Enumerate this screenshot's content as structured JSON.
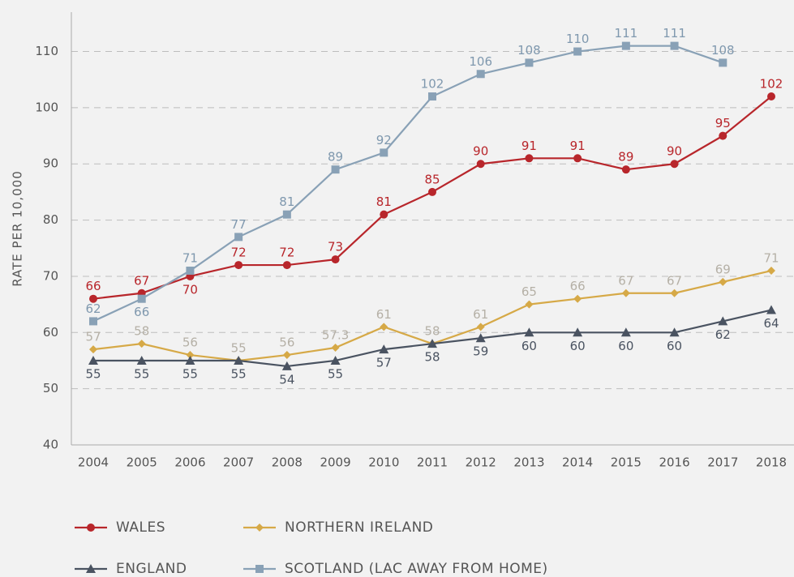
{
  "chart_data": {
    "type": "line",
    "y_label": "RATE PER 10,000",
    "categories": [
      "2004",
      "2005",
      "2006",
      "2007",
      "2008",
      "2009",
      "2010",
      "2011",
      "2012",
      "2013",
      "2014",
      "2015",
      "2016",
      "2017",
      "2018"
    ],
    "series": [
      {
        "name": "WALES",
        "color": "#b8262b",
        "label_color": "#b8262b",
        "marker": "circle",
        "values": [
          66,
          67,
          70,
          72,
          72,
          73,
          81,
          85,
          90,
          91,
          91,
          89,
          90,
          95,
          102
        ]
      },
      {
        "name": "NORTHERN IRELAND",
        "color": "#d6a947",
        "label_color": "#b5b0a6",
        "marker": "diamond",
        "values": [
          57,
          58,
          56,
          55,
          56,
          57.3,
          61,
          58,
          61,
          65,
          66,
          67,
          67,
          69,
          71
        ]
      },
      {
        "name": "ENGLAND",
        "color": "#4a5361",
        "label_color": "#4a5361",
        "marker": "triangle",
        "values": [
          55,
          55,
          55,
          55,
          54,
          55,
          57,
          58,
          59,
          60,
          60,
          60,
          60,
          62,
          64
        ]
      },
      {
        "name": "SCOTLAND (LAC AWAY FROM HOME)",
        "color": "#89a1b6",
        "label_color": "#7f98ae",
        "marker": "square",
        "values": [
          62,
          66,
          71,
          77,
          81,
          89,
          92,
          102,
          106,
          108,
          110,
          111,
          111,
          108,
          null
        ]
      }
    ],
    "ylim": [
      40,
      117
    ],
    "yticks": [
      40,
      50,
      60,
      70,
      80,
      90,
      100,
      110
    ],
    "grid": true
  }
}
